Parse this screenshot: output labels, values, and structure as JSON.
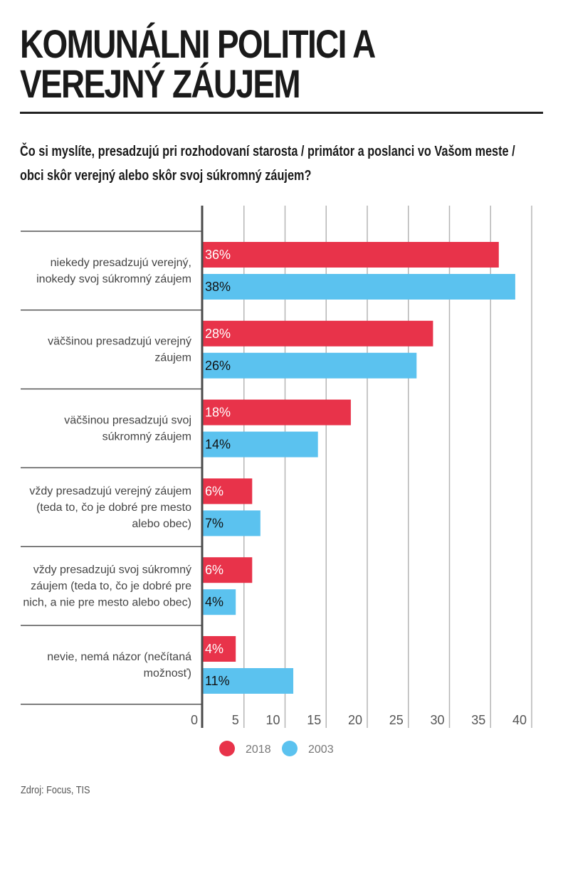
{
  "header": {
    "title_line1": "KOMUNÁLNI POLITICI A",
    "title_line2": "VEREJNÝ ZÁUJEM",
    "question": "Čo si myslíte, presadzujú pri rozhodovaní starosta / primátor a poslanci vo Vašom meste / obci skôr verejný alebo skôr svoj súkromný záujem?"
  },
  "footer": {
    "source": "Zdroj: Focus, TIS"
  },
  "colors": {
    "series_2018": "#e8334a",
    "series_2003": "#5bc2ef"
  },
  "chart_data": {
    "type": "bar",
    "orientation": "horizontal",
    "title": "KOMUNÁLNI POLITICI A VEREJNÝ ZÁUJEM",
    "subtitle": "Čo si myslíte, presadzujú pri rozhodovaní starosta / primátor a poslanci vo Vašom meste / obci skôr verejný alebo skôr svoj súkromný záujem?",
    "xlabel": "",
    "ylabel": "",
    "xlim": [
      0,
      40
    ],
    "xticks": [
      0,
      5,
      10,
      15,
      20,
      25,
      30,
      35,
      40
    ],
    "grid": true,
    "legend_position": "bottom",
    "value_suffix": "%",
    "categories": [
      [
        "niekedy presadzujú verejný,",
        "inokedy svoj súkromný záujem"
      ],
      [
        "väčšinou presadzujú verejný",
        "záujem"
      ],
      [
        "väčšinou presadzujú svoj",
        "súkromný záujem"
      ],
      [
        "vždy presadzujú verejný záujem",
        "(teda to, čo je dobré pre mesto",
        "alebo obec)"
      ],
      [
        "vždy presadzujú svoj súkromný",
        "záujem (teda to, čo je dobré pre",
        "nich, a nie pre mesto alebo obec)"
      ],
      [
        "nevie, nemá názor (nečítaná",
        "možnosť)"
      ]
    ],
    "series": [
      {
        "name": "2018",
        "color": "#e8334a",
        "label_color": "#ffffff",
        "values": [
          36,
          28,
          18,
          6,
          6,
          4
        ]
      },
      {
        "name": "2003",
        "color": "#5bc2ef",
        "label_color": "#111111",
        "values": [
          38,
          26,
          14,
          7,
          4,
          11
        ]
      }
    ],
    "source": "Zdroj: Focus, TIS"
  }
}
